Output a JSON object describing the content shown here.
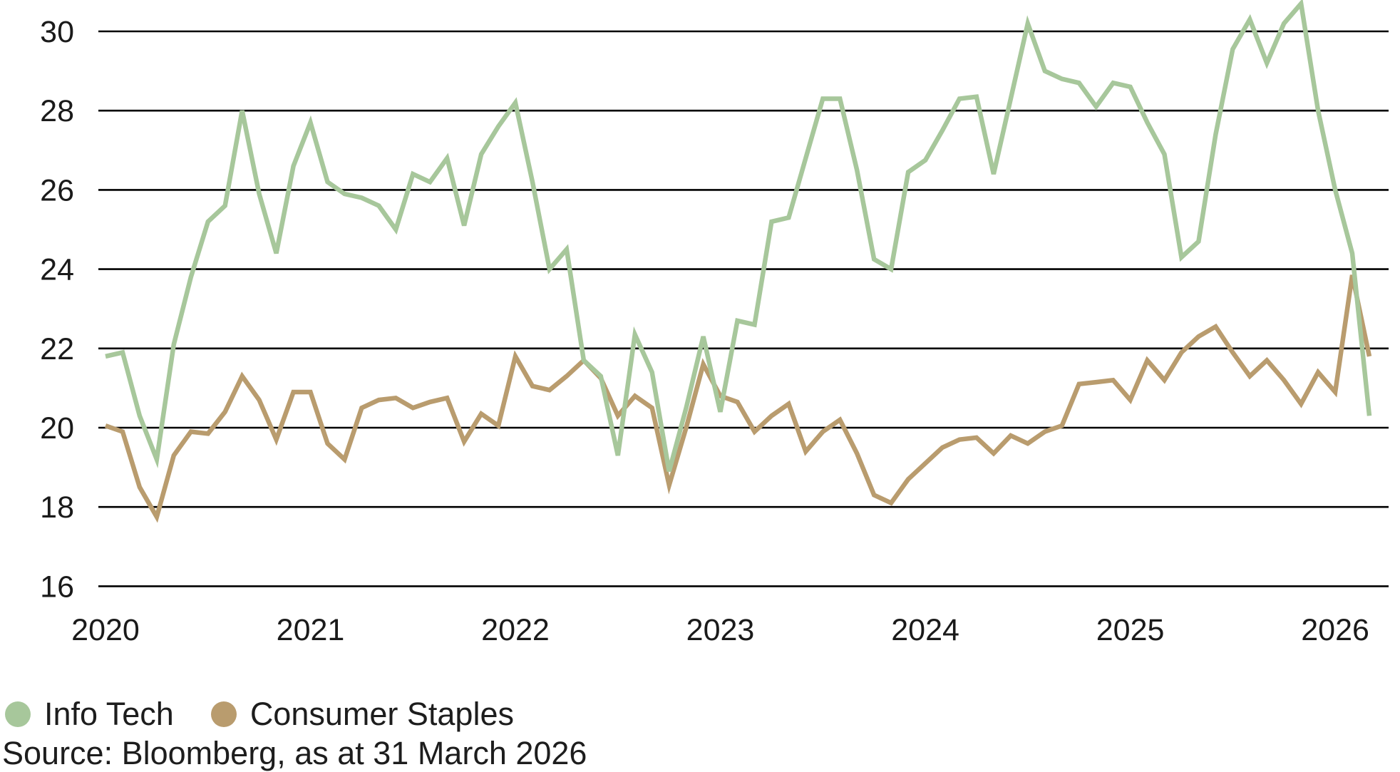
{
  "chart_data": {
    "type": "line",
    "title": "",
    "xlabel": "",
    "ylabel": "",
    "x_start": "2020-01",
    "x_end": "2026-03",
    "x_frequency": "monthly",
    "x_year_labels": [
      "2020",
      "2021",
      "2022",
      "2023",
      "2024",
      "2025",
      "2026"
    ],
    "y_ticks": [
      30,
      28,
      26,
      24,
      22,
      20,
      18,
      16
    ],
    "ylim": [
      15.2,
      30.9
    ],
    "grid": "horizontal-only",
    "legend_position": "bottom-left",
    "series": [
      {
        "name": "Info Tech",
        "color": "#a7c79b",
        "values": [
          21.8,
          21.9,
          20.3,
          19.2,
          22.1,
          23.8,
          25.2,
          25.6,
          28.0,
          25.9,
          24.4,
          26.6,
          27.7,
          26.2,
          25.9,
          25.8,
          25.6,
          25.0,
          26.4,
          26.2,
          26.8,
          25.1,
          26.9,
          27.6,
          28.2,
          26.2,
          24.0,
          24.5,
          21.7,
          21.3,
          19.3,
          22.35,
          21.4,
          18.9,
          20.5,
          22.3,
          20.4,
          22.7,
          22.6,
          25.2,
          25.3,
          26.8,
          28.3,
          28.3,
          26.5,
          24.25,
          24.0,
          26.45,
          26.75,
          27.5,
          28.3,
          28.35,
          26.4,
          28.3,
          30.2,
          29.0,
          28.8,
          28.7,
          28.1,
          28.7,
          28.6,
          27.7,
          26.9,
          24.3,
          24.7,
          27.4,
          29.55,
          30.3,
          29.2,
          30.2,
          30.7,
          28.0,
          26.0,
          24.4,
          20.3
        ]
      },
      {
        "name": "Consumer Staples",
        "color": "#b99c6e",
        "values": [
          20.05,
          19.9,
          18.5,
          17.75,
          19.3,
          19.9,
          19.85,
          20.4,
          21.3,
          20.7,
          19.7,
          20.9,
          20.9,
          19.6,
          19.2,
          20.5,
          20.7,
          20.75,
          20.5,
          20.65,
          20.75,
          19.65,
          20.35,
          20.05,
          21.8,
          21.05,
          20.95,
          21.3,
          21.7,
          21.25,
          20.3,
          20.8,
          20.5,
          18.55,
          20.0,
          21.6,
          20.8,
          20.65,
          19.9,
          20.3,
          20.6,
          19.4,
          19.9,
          20.2,
          19.35,
          18.3,
          18.1,
          18.7,
          19.1,
          19.5,
          19.7,
          19.75,
          19.35,
          19.8,
          19.6,
          19.9,
          20.05,
          21.1,
          21.15,
          21.2,
          20.7,
          21.7,
          21.2,
          21.9,
          22.3,
          22.55,
          21.9,
          21.3,
          21.7,
          21.2,
          20.6,
          21.4,
          20.9,
          23.85,
          21.8
        ]
      }
    ]
  },
  "legend": {
    "items": [
      {
        "label": "Info Tech",
        "color": "#a7c79b"
      },
      {
        "label": "Consumer Staples",
        "color": "#b99c6e"
      }
    ]
  },
  "source": "Source: Bloomberg, as at 31 March 2026",
  "colors": {
    "gridline": "#000000",
    "text": "#1a1a1a",
    "background": "#ffffff"
  }
}
